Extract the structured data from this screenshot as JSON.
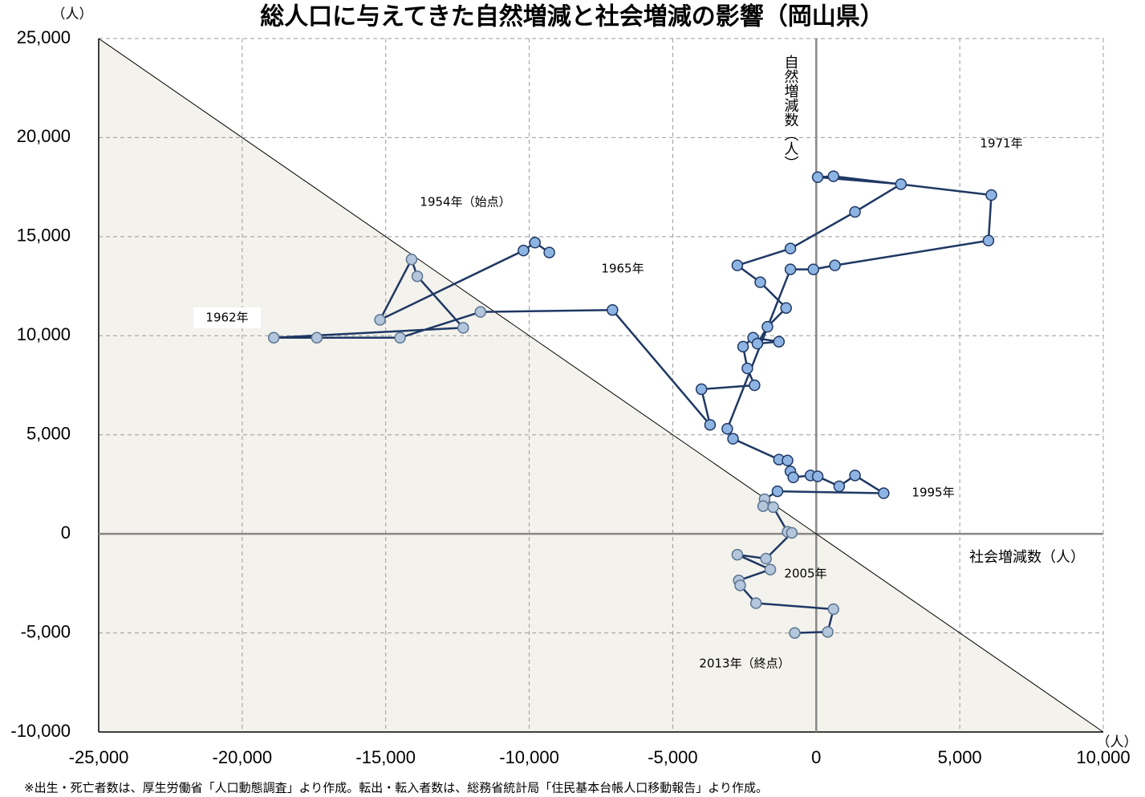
{
  "chart_data": {
    "type": "line",
    "title": "総人口に与えてきた自然増減と社会増減の影響（岡山県）",
    "xlabel": "社会増減数（人）",
    "ylabel": "自然増減数（人）",
    "y_unit": "（人）",
    "x_unit": "（人）",
    "footnote": "※出生・死亡者数は、厚生労働省「人口動態調査」より作成。転出・転入者数は、総務省統計局「住民基本台帳人口移動報告」より作成。",
    "xlim": [
      -25000,
      10000
    ],
    "ylim": [
      -10000,
      25000
    ],
    "xticks": [
      {
        "value": -25000,
        "label": "-25,000"
      },
      {
        "value": -20000,
        "label": "-20,000"
      },
      {
        "value": -15000,
        "label": "-15,000"
      },
      {
        "value": -10000,
        "label": "-10,000"
      },
      {
        "value": -5000,
        "label": "-5,000"
      },
      0,
      {
        "value": 5000,
        "label": "5,000"
      },
      {
        "value": 10000,
        "label": "10,000"
      }
    ],
    "yticks": [
      {
        "value": -10000,
        "label": "-10,000"
      },
      {
        "value": -5000,
        "label": "-5,000"
      },
      0,
      {
        "value": 5000,
        "label": "5,000"
      },
      {
        "value": 10000,
        "label": "10,000"
      },
      {
        "value": 15000,
        "label": "15,000"
      },
      {
        "value": 20000,
        "label": "20,000"
      },
      {
        "value": 25000,
        "label": "25,000"
      }
    ],
    "grid": true,
    "line_color": "#1f3864",
    "marker_color": "#8eb4e3",
    "decrease_marker_color": "#b4c6dc",
    "decrease_line_color": "#5b7490",
    "shade_color": "#f3f2ec",
    "x": [
      -9300,
      -9800,
      -10200,
      -15200,
      -14100,
      -13900,
      -12300,
      -18900,
      -17400,
      -14500,
      -11700,
      -7100,
      -3700,
      -4000,
      -2150,
      -2400,
      -2550,
      -2200,
      -1300,
      -2050,
      -1700,
      -1050,
      -1950,
      -2750,
      -900,
      1350,
      2950,
      50,
      600,
      6100,
      6000,
      650,
      -100,
      -900,
      -3100,
      -2900,
      -1300,
      -1000,
      -900,
      -800,
      -200,
      50,
      800,
      1350,
      2350,
      -1350,
      -1800,
      -1850,
      -1500,
      -1000,
      -850,
      -1750,
      -2750,
      -1600,
      -2700,
      -2650,
      -2100,
      600,
      400,
      -750
    ],
    "values": [
      14200,
      14700,
      14300,
      10800,
      13850,
      13000,
      10400,
      9900,
      9900,
      9900,
      11200,
      11300,
      5500,
      7300,
      7500,
      8350,
      9450,
      9900,
      9700,
      9600,
      10450,
      11400,
      12700,
      13550,
      14400,
      16250,
      17650,
      18000,
      18050,
      17100,
      14800,
      13550,
      13350,
      13350,
      5300,
      4800,
      3750,
      3700,
      3150,
      2850,
      2950,
      2900,
      2400,
      2950,
      2050,
      2150,
      1750,
      1400,
      1350,
      100,
      50,
      -1250,
      -1050,
      -1800,
      -2350,
      -2600,
      -3500,
      -3800,
      -4950,
      -5000
    ],
    "annotations": [
      "1954年（始点）",
      "1962年",
      "1965年",
      "1971年",
      "1995年",
      "2005年",
      "2013年（終点）"
    ]
  }
}
